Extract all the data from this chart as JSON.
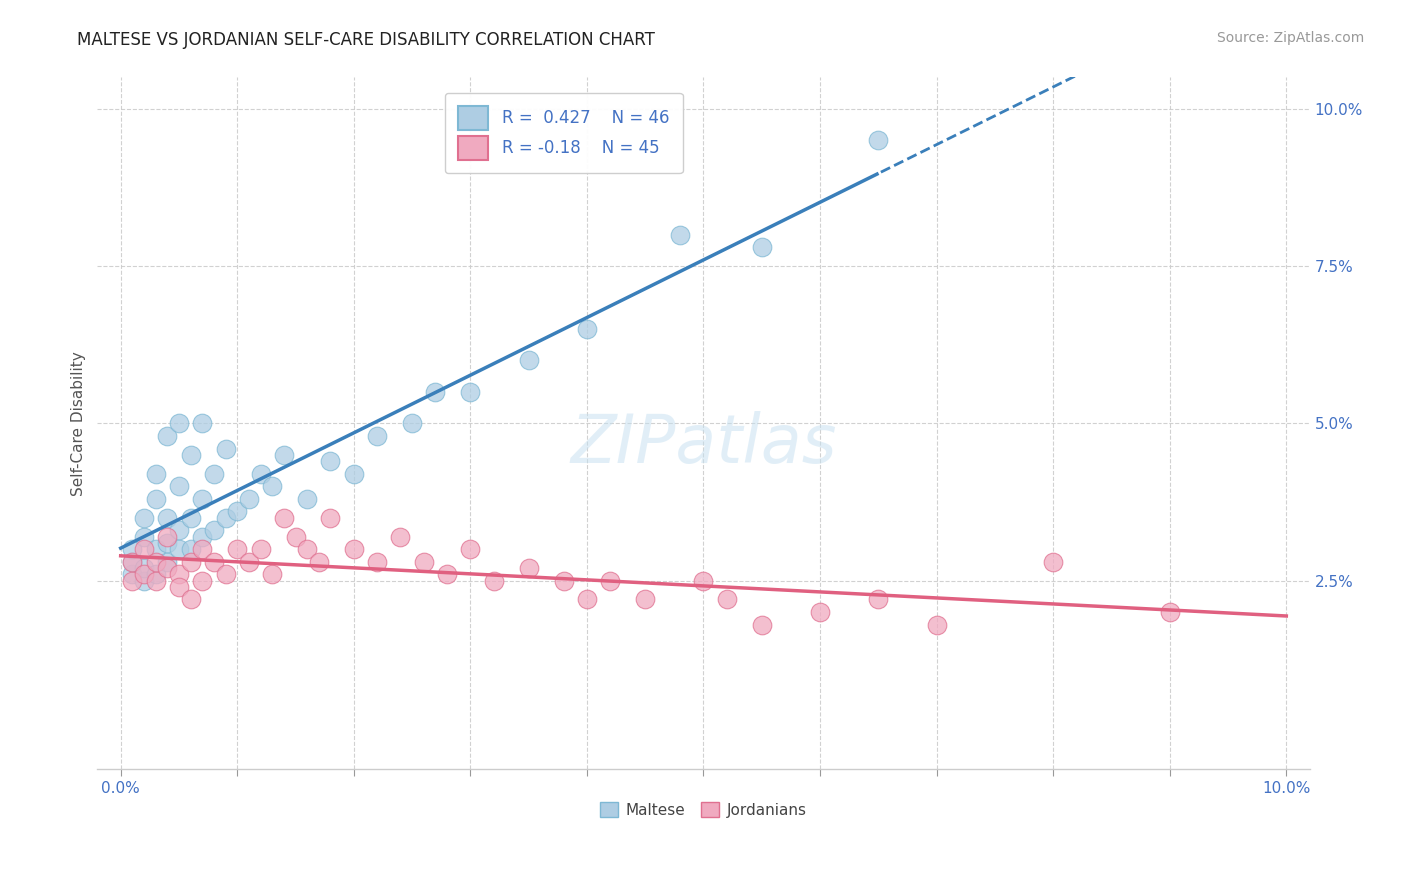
{
  "title": "MALTESE VS JORDANIAN SELF-CARE DISABILITY CORRELATION CHART",
  "source": "Source: ZipAtlas.com",
  "ylabel": "Self-Care Disability",
  "xlim": [
    -0.002,
    0.102
  ],
  "ylim": [
    -0.005,
    0.105
  ],
  "xtick_labels": [
    "0.0%",
    "",
    "",
    "",
    "",
    "",
    "",
    "",
    "",
    "",
    "10.0%"
  ],
  "xtick_vals": [
    0.0,
    0.01,
    0.02,
    0.03,
    0.04,
    0.05,
    0.06,
    0.07,
    0.08,
    0.09,
    0.1
  ],
  "ytick_labels": [
    "2.5%",
    "5.0%",
    "7.5%",
    "10.0%"
  ],
  "ytick_vals": [
    0.025,
    0.05,
    0.075,
    0.1
  ],
  "maltese_R": 0.427,
  "maltese_N": 46,
  "jordanian_R": -0.18,
  "jordanian_N": 45,
  "blue_color": "#7eb8d4",
  "blue_fill": "#aecde3",
  "pink_color": "#e07090",
  "pink_fill": "#f0aac0",
  "blue_line_color": "#3a7fba",
  "pink_line_color": "#e06080",
  "background_color": "#ffffff",
  "grid_color": "#cccccc",
  "title_color": "#222222",
  "axis_label_color": "#4472c4",
  "watermark": "ZIPatlas",
  "maltese_x": [
    0.001,
    0.001,
    0.001,
    0.002,
    0.002,
    0.002,
    0.002,
    0.003,
    0.003,
    0.003,
    0.003,
    0.004,
    0.004,
    0.004,
    0.004,
    0.005,
    0.005,
    0.005,
    0.005,
    0.006,
    0.006,
    0.006,
    0.007,
    0.007,
    0.007,
    0.008,
    0.008,
    0.009,
    0.009,
    0.01,
    0.011,
    0.012,
    0.013,
    0.014,
    0.016,
    0.018,
    0.02,
    0.022,
    0.025,
    0.027,
    0.03,
    0.035,
    0.04,
    0.048,
    0.055,
    0.065
  ],
  "maltese_y": [
    0.026,
    0.028,
    0.03,
    0.025,
    0.027,
    0.032,
    0.035,
    0.026,
    0.03,
    0.038,
    0.042,
    0.028,
    0.031,
    0.035,
    0.048,
    0.03,
    0.033,
    0.04,
    0.05,
    0.03,
    0.035,
    0.045,
    0.032,
    0.038,
    0.05,
    0.033,
    0.042,
    0.035,
    0.046,
    0.036,
    0.038,
    0.042,
    0.04,
    0.045,
    0.038,
    0.044,
    0.042,
    0.048,
    0.05,
    0.055,
    0.055,
    0.06,
    0.065,
    0.08,
    0.078,
    0.095
  ],
  "jordanian_x": [
    0.001,
    0.001,
    0.002,
    0.002,
    0.003,
    0.003,
    0.004,
    0.004,
    0.005,
    0.005,
    0.006,
    0.006,
    0.007,
    0.007,
    0.008,
    0.009,
    0.01,
    0.011,
    0.012,
    0.013,
    0.014,
    0.015,
    0.016,
    0.017,
    0.018,
    0.02,
    0.022,
    0.024,
    0.026,
    0.028,
    0.03,
    0.032,
    0.035,
    0.038,
    0.04,
    0.042,
    0.045,
    0.05,
    0.052,
    0.055,
    0.06,
    0.065,
    0.07,
    0.08,
    0.09
  ],
  "jordanian_y": [
    0.025,
    0.028,
    0.026,
    0.03,
    0.025,
    0.028,
    0.027,
    0.032,
    0.026,
    0.024,
    0.028,
    0.022,
    0.03,
    0.025,
    0.028,
    0.026,
    0.03,
    0.028,
    0.03,
    0.026,
    0.035,
    0.032,
    0.03,
    0.028,
    0.035,
    0.03,
    0.028,
    0.032,
    0.028,
    0.026,
    0.03,
    0.025,
    0.027,
    0.025,
    0.022,
    0.025,
    0.022,
    0.025,
    0.022,
    0.018,
    0.02,
    0.022,
    0.018,
    0.028,
    0.02
  ]
}
